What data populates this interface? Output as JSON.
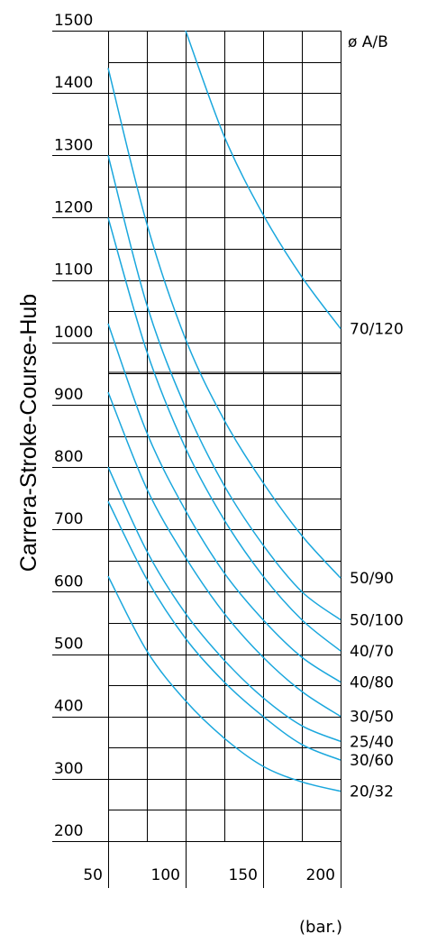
{
  "chart_data": {
    "type": "line",
    "title": "",
    "ylabel": "Carrera-Stroke-Course-Hub",
    "xlabel": "(bar.)",
    "legend_header": "ø A/B",
    "xlim": [
      50,
      200
    ],
    "ylim": [
      200,
      1500
    ],
    "x_ticks": [
      50,
      100,
      150,
      200
    ],
    "y_ticks": [
      200,
      300,
      400,
      500,
      600,
      700,
      800,
      900,
      1000,
      1100,
      1200,
      1300,
      1400,
      1500
    ],
    "grid": true,
    "curve_color": "#1aa7dd",
    "line_color": "#000000",
    "background": "#ffffff",
    "series": [
      {
        "name": "70/120",
        "x": [
          100,
          125,
          150,
          175,
          200
        ],
        "y": [
          1500,
          1330,
          1205,
          1105,
          1022
        ]
      },
      {
        "name": "50/90",
        "x": [
          50,
          75,
          100,
          125,
          150,
          175,
          200
        ],
        "y": [
          1440,
          1190,
          1005,
          875,
          775,
          690,
          622
        ]
      },
      {
        "name": "50/100",
        "x": [
          50,
          75,
          100,
          125,
          150,
          175,
          200
        ],
        "y": [
          1300,
          1060,
          895,
          770,
          675,
          600,
          555
        ]
      },
      {
        "name": "40/70",
        "x": [
          50,
          75,
          100,
          125,
          150,
          175,
          200
        ],
        "y": [
          1200,
          985,
          830,
          715,
          625,
          555,
          505
        ]
      },
      {
        "name": "40/80",
        "x": [
          50,
          75,
          100,
          125,
          150,
          175,
          200
        ],
        "y": [
          1030,
          855,
          730,
          630,
          555,
          495,
          455
        ]
      },
      {
        "name": "30/50",
        "x": [
          50,
          75,
          100,
          125,
          150,
          175,
          200
        ],
        "y": [
          920,
          765,
          655,
          565,
          495,
          440,
          400
        ]
      },
      {
        "name": "25/40",
        "x": [
          50,
          75,
          100,
          125,
          150,
          175,
          200
        ],
        "y": [
          800,
          665,
          565,
          490,
          430,
          385,
          360
        ]
      },
      {
        "name": "30/60",
        "x": [
          50,
          75,
          100,
          125,
          150,
          175,
          200
        ],
        "y": [
          745,
          620,
          525,
          455,
          400,
          355,
          330
        ]
      },
      {
        "name": "20/32",
        "x": [
          50,
          75,
          100,
          125,
          150,
          175,
          200
        ],
        "y": [
          625,
          505,
          425,
          365,
          320,
          295,
          280
        ]
      }
    ]
  }
}
